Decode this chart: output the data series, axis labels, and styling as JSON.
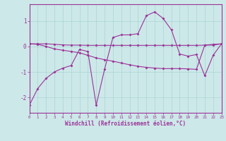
{
  "xlabel": "Windchill (Refroidissement éolien,°C)",
  "background_color": "#cde8e8",
  "line_color": "#993399",
  "grid_color": "#aad4d4",
  "x_hours": [
    0,
    1,
    2,
    3,
    4,
    5,
    6,
    7,
    8,
    9,
    10,
    11,
    12,
    13,
    14,
    15,
    16,
    17,
    18,
    19,
    20,
    21,
    22,
    23
  ],
  "line1_y": [
    0.1,
    0.1,
    0.1,
    0.08,
    0.06,
    0.05,
    0.05,
    0.04,
    0.04,
    0.04,
    0.04,
    0.04,
    0.04,
    0.04,
    0.04,
    0.04,
    0.04,
    0.04,
    0.04,
    0.04,
    0.04,
    0.05,
    0.08,
    0.1
  ],
  "line2_y": [
    0.1,
    0.08,
    0.0,
    -0.1,
    -0.15,
    -0.2,
    -0.25,
    -0.35,
    -0.45,
    -0.52,
    -0.58,
    -0.65,
    -0.72,
    -0.78,
    -0.82,
    -0.85,
    -0.87,
    -0.87,
    -0.87,
    -0.88,
    -0.9,
    0.05,
    0.05,
    0.1
  ],
  "line3_y": [
    -2.3,
    -1.65,
    -1.25,
    -1.0,
    -0.85,
    -0.75,
    -0.12,
    -0.2,
    -2.3,
    -0.9,
    0.35,
    0.45,
    0.45,
    0.5,
    1.2,
    1.35,
    1.1,
    0.65,
    -0.3,
    -0.38,
    -0.32,
    -1.15,
    -0.35,
    0.1
  ],
  "ylim": [
    -2.6,
    1.65
  ],
  "xlim": [
    0,
    23
  ],
  "yticks": [
    -2,
    -1,
    0,
    1
  ],
  "xticks": [
    0,
    1,
    2,
    3,
    4,
    5,
    6,
    7,
    8,
    9,
    10,
    11,
    12,
    13,
    14,
    15,
    16,
    17,
    18,
    19,
    20,
    21,
    22,
    23
  ]
}
